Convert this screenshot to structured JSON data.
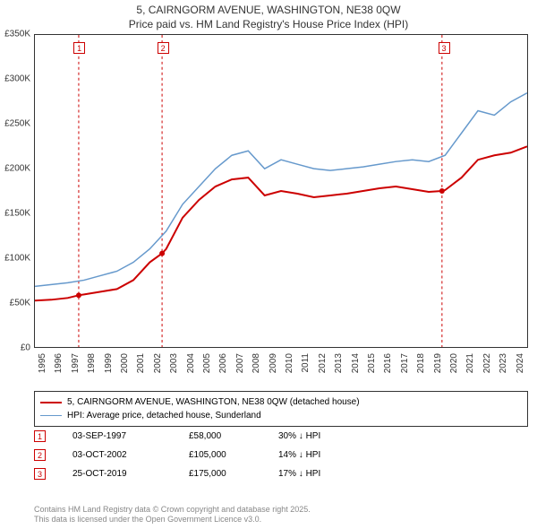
{
  "title": {
    "line1": "5, CAIRNGORM AVENUE, WASHINGTON, NE38 0QW",
    "line2": "Price paid vs. HM Land Registry's House Price Index (HPI)"
  },
  "chart": {
    "type": "line",
    "background_color": "#ffffff",
    "border_color": "#333333",
    "yaxis": {
      "min": 0,
      "max": 350000,
      "tick_step": 50000,
      "ticks": [
        "£0",
        "£50K",
        "£100K",
        "£150K",
        "£200K",
        "£250K",
        "£300K",
        "£350K"
      ],
      "tick_values": [
        0,
        50000,
        100000,
        150000,
        200000,
        250000,
        300000,
        350000
      ],
      "label_fontsize": 10,
      "label_color": "#333333"
    },
    "xaxis": {
      "min": 1995,
      "max": 2025,
      "ticks": [
        "1995",
        "1996",
        "1997",
        "1998",
        "1999",
        "2000",
        "2001",
        "2002",
        "2003",
        "2004",
        "2005",
        "2006",
        "2007",
        "2008",
        "2009",
        "2010",
        "2011",
        "2012",
        "2013",
        "2014",
        "2015",
        "2016",
        "2017",
        "2018",
        "2019",
        "2020",
        "2021",
        "2022",
        "2023",
        "2024"
      ],
      "tick_values": [
        1995,
        1996,
        1997,
        1998,
        1999,
        2000,
        2001,
        2002,
        2003,
        2004,
        2005,
        2006,
        2007,
        2008,
        2009,
        2010,
        2011,
        2012,
        2013,
        2014,
        2015,
        2016,
        2017,
        2018,
        2019,
        2020,
        2021,
        2022,
        2023,
        2024
      ],
      "label_fontsize": 10,
      "label_rotation": -90
    },
    "series": [
      {
        "id": "price_paid",
        "label": "5, CAIRNGORM AVENUE, WASHINGTON, NE38 0QW (detached house)",
        "color": "#cc0000",
        "line_width": 2,
        "x": [
          1995,
          1996,
          1997,
          1997.67,
          1998,
          1999,
          2000,
          2001,
          2002,
          2002.75,
          2003,
          2004,
          2005,
          2006,
          2007,
          2008,
          2009,
          2010,
          2011,
          2012,
          2013,
          2014,
          2015,
          2016,
          2017,
          2018,
          2019,
          2019.81,
          2020,
          2021,
          2022,
          2023,
          2024,
          2025
        ],
        "y": [
          52000,
          53000,
          55000,
          58000,
          59000,
          62000,
          65000,
          75000,
          95000,
          105000,
          110000,
          145000,
          165000,
          180000,
          188000,
          190000,
          170000,
          175000,
          172000,
          168000,
          170000,
          172000,
          175000,
          178000,
          180000,
          177000,
          174000,
          175000,
          176000,
          190000,
          210000,
          215000,
          218000,
          225000
        ]
      },
      {
        "id": "hpi",
        "label": "HPI: Average price, detached house, Sunderland",
        "color": "#6699cc",
        "line_width": 1.5,
        "x": [
          1995,
          1996,
          1997,
          1998,
          1999,
          2000,
          2001,
          2002,
          2003,
          2004,
          2005,
          2006,
          2007,
          2008,
          2009,
          2010,
          2011,
          2012,
          2013,
          2014,
          2015,
          2016,
          2017,
          2018,
          2019,
          2020,
          2021,
          2022,
          2023,
          2024,
          2025
        ],
        "y": [
          68000,
          70000,
          72000,
          75000,
          80000,
          85000,
          95000,
          110000,
          130000,
          160000,
          180000,
          200000,
          215000,
          220000,
          200000,
          210000,
          205000,
          200000,
          198000,
          200000,
          202000,
          205000,
          208000,
          210000,
          208000,
          215000,
          240000,
          265000,
          260000,
          275000,
          285000
        ]
      }
    ],
    "vlines": [
      {
        "x": 1997.67,
        "color": "#cc0000",
        "dash": "3,3"
      },
      {
        "x": 2002.75,
        "color": "#cc0000",
        "dash": "3,3"
      },
      {
        "x": 2019.81,
        "color": "#cc0000",
        "dash": "3,3"
      }
    ],
    "markers": [
      {
        "n": "1",
        "x": 1997.67
      },
      {
        "n": "2",
        "x": 2002.75
      },
      {
        "n": "3",
        "x": 2019.81
      }
    ],
    "sale_points": [
      {
        "x": 1997.67,
        "y": 58000,
        "color": "#cc0000"
      },
      {
        "x": 2002.75,
        "y": 105000,
        "color": "#cc0000"
      },
      {
        "x": 2019.81,
        "y": 175000,
        "color": "#cc0000"
      }
    ]
  },
  "legend": {
    "rows": [
      {
        "color": "#cc0000",
        "thickness": 2,
        "label": "5, CAIRNGORM AVENUE, WASHINGTON, NE38 0QW (detached house)"
      },
      {
        "color": "#6699cc",
        "thickness": 1.5,
        "label": "HPI: Average price, detached house, Sunderland"
      }
    ]
  },
  "sales": [
    {
      "n": "1",
      "date": "03-SEP-1997",
      "price": "£58,000",
      "delta": "30% ↓ HPI"
    },
    {
      "n": "2",
      "date": "03-OCT-2002",
      "price": "£105,000",
      "delta": "14% ↓ HPI"
    },
    {
      "n": "3",
      "date": "25-OCT-2019",
      "price": "£175,000",
      "delta": "17% ↓ HPI"
    }
  ],
  "footer": {
    "line1": "Contains HM Land Registry data © Crown copyright and database right 2025.",
    "line2": "This data is licensed under the Open Government Licence v3.0."
  }
}
